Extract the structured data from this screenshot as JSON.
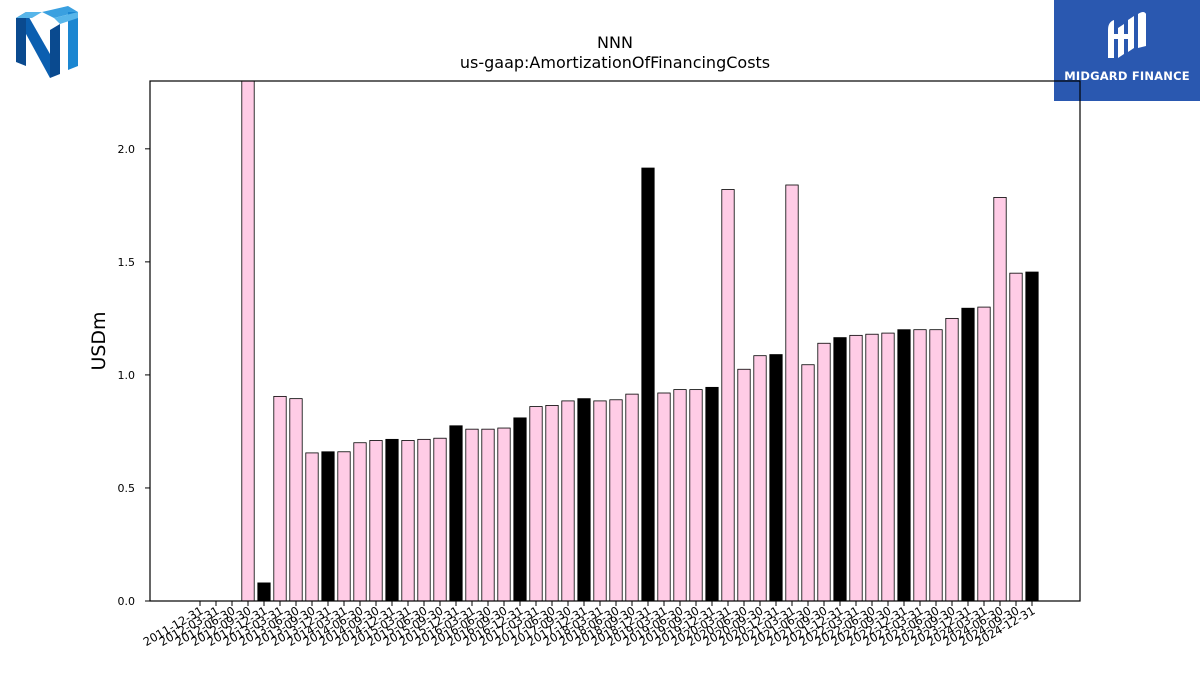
{
  "logos": {
    "left": {
      "icon": "nnn-logo-icon"
    },
    "right": {
      "icon": "midgard-logo-icon",
      "text": "MIDGARD FINANCE"
    }
  },
  "colors": {
    "bar_pink": "#ffcce6",
    "bar_black": "#000000",
    "brand_blue": "#2a58b0"
  },
  "chart_data": {
    "type": "bar",
    "title": "NNN",
    "subtitle": "us-gaap:AmortizationOfFinancingCosts",
    "xlabel": "",
    "ylabel": "USDm",
    "ylim": [
      0,
      2.3
    ],
    "yticks": [
      0.0,
      0.5,
      1.0,
      1.5,
      2.0
    ],
    "ytick_labels": [
      "0.0",
      "0.5",
      "1.0",
      "1.5",
      "2.0"
    ],
    "grid": false,
    "categories": [
      "2011-12-31",
      "2012-03-31",
      "2012-06-30",
      "2012-09-30",
      "2012-12-31",
      "2013-03-31",
      "2013-06-30",
      "2013-09-30",
      "2013-12-31",
      "2014-03-31",
      "2014-06-30",
      "2014-09-30",
      "2014-12-31",
      "2015-03-31",
      "2015-06-30",
      "2015-09-30",
      "2015-12-31",
      "2016-03-31",
      "2016-06-30",
      "2016-09-30",
      "2016-12-31",
      "2017-03-31",
      "2017-06-30",
      "2017-09-30",
      "2017-12-31",
      "2018-03-31",
      "2018-06-30",
      "2018-09-30",
      "2018-12-31",
      "2019-03-31",
      "2019-06-30",
      "2019-09-30",
      "2019-12-31",
      "2020-03-31",
      "2020-06-30",
      "2020-09-30",
      "2020-12-31",
      "2021-03-31",
      "2021-06-30",
      "2021-09-30",
      "2021-12-31",
      "2022-03-31",
      "2022-06-30",
      "2022-09-30",
      "2022-12-31",
      "2023-03-31",
      "2023-06-30",
      "2023-09-30",
      "2023-12-31",
      "2024-03-31",
      "2024-06-30",
      "2024-09-30",
      "2024-12-31"
    ],
    "values": [
      null,
      null,
      null,
      2.3,
      0.08,
      0.905,
      0.895,
      0.655,
      0.66,
      0.66,
      0.7,
      0.71,
      0.715,
      0.71,
      0.715,
      0.72,
      0.775,
      0.76,
      0.76,
      0.765,
      0.81,
      0.86,
      0.865,
      0.885,
      0.895,
      0.885,
      0.89,
      0.915,
      1.915,
      0.92,
      0.935,
      0.935,
      0.945,
      1.82,
      1.025,
      1.085,
      1.09,
      1.84,
      1.045,
      1.14,
      1.165,
      1.175,
      1.18,
      1.185,
      1.2,
      1.2,
      1.2,
      1.25,
      1.295,
      1.3,
      1.785,
      1.45,
      1.455
    ],
    "bar_colors": [
      "pink",
      "pink",
      "pink",
      "pink",
      "black",
      "pink",
      "pink",
      "pink",
      "black",
      "pink",
      "pink",
      "pink",
      "black",
      "pink",
      "pink",
      "pink",
      "black",
      "pink",
      "pink",
      "pink",
      "black",
      "pink",
      "pink",
      "pink",
      "black",
      "pink",
      "pink",
      "pink",
      "black",
      "pink",
      "pink",
      "pink",
      "black",
      "pink",
      "pink",
      "pink",
      "black",
      "pink",
      "pink",
      "pink",
      "black",
      "pink",
      "pink",
      "pink",
      "black",
      "pink",
      "pink",
      "pink",
      "black",
      "pink",
      "pink",
      "pink",
      "black"
    ]
  }
}
